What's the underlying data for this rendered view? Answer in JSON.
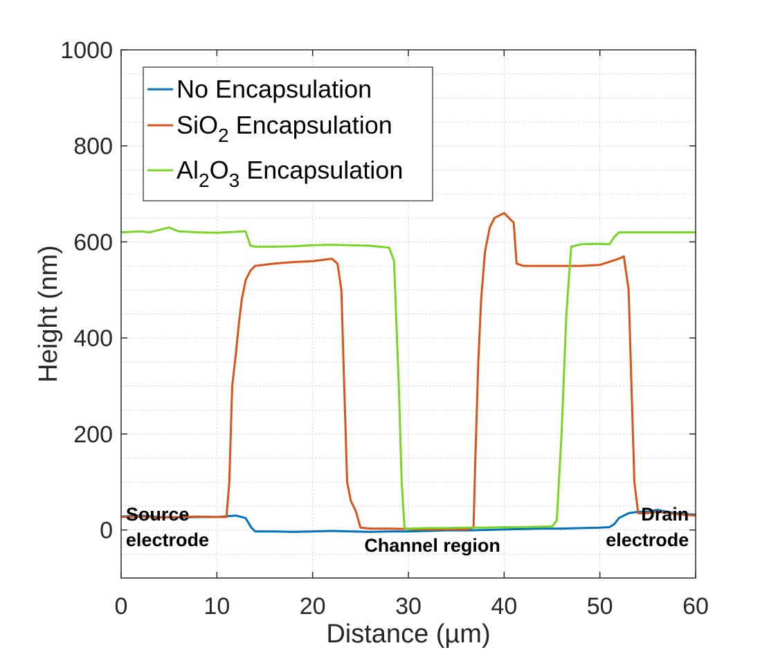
{
  "chart_data": {
    "type": "line",
    "title": "",
    "xlabel": "Distance (µm)",
    "ylabel": "Height (nm)",
    "xlim": [
      0,
      60
    ],
    "ylim": [
      -100,
      1000
    ],
    "xticks": [
      0,
      10,
      20,
      30,
      40,
      50,
      60
    ],
    "yticks": [
      0,
      200,
      400,
      600,
      800,
      1000
    ],
    "grid": "dotted",
    "legend_position": "top-left",
    "series": [
      {
        "name": "No Encapsulation",
        "legend": [
          "No Encapsulation"
        ],
        "color": "#0072BD",
        "x": [
          0,
          2,
          4,
          6,
          8,
          10,
          12,
          13,
          13.6,
          14,
          16,
          18,
          20,
          22,
          24,
          26,
          28,
          30,
          32,
          34,
          36,
          38,
          40,
          42,
          44,
          46,
          48,
          50,
          51,
          51.5,
          52,
          53,
          54,
          55,
          56,
          57,
          58,
          59,
          60
        ],
        "y": [
          28,
          30,
          27,
          26,
          27,
          27,
          30,
          25,
          5,
          -3,
          -3,
          -4,
          -3,
          -2,
          -3,
          -4,
          -3,
          -3,
          -2,
          -1,
          -1,
          0,
          1,
          2,
          3,
          3,
          4,
          5,
          6,
          12,
          25,
          35,
          38,
          38,
          42,
          38,
          35,
          33,
          32
        ]
      },
      {
        "name": "SiO2 Encapsulation",
        "legend": [
          "SiO",
          "2",
          " Encapsulation"
        ],
        "color": "#D95319",
        "x": [
          0,
          2,
          4,
          6,
          8,
          10,
          11,
          11.3,
          11.6,
          12,
          12.3,
          12.6,
          13,
          13.5,
          14,
          16,
          18,
          20,
          22,
          22.6,
          23,
          23.3,
          23.6,
          24,
          24.5,
          25,
          26,
          28,
          30,
          32,
          34,
          36,
          36.8,
          37,
          37.3,
          37.6,
          38,
          38.5,
          39,
          39.5,
          40,
          40.5,
          41,
          41.3,
          42,
          44,
          46,
          48,
          50,
          52,
          52.5,
          53,
          53.3,
          53.6,
          54,
          55,
          56,
          57,
          58,
          60
        ],
        "y": [
          27,
          28,
          26,
          27,
          28,
          27,
          27,
          100,
          300,
          370,
          430,
          480,
          520,
          540,
          550,
          555,
          558,
          560,
          565,
          555,
          500,
          300,
          100,
          60,
          40,
          5,
          3,
          3,
          2,
          1,
          1,
          1,
          5,
          150,
          350,
          480,
          580,
          630,
          650,
          655,
          660,
          650,
          640,
          555,
          550,
          550,
          550,
          550,
          552,
          565,
          570,
          500,
          300,
          100,
          35,
          35,
          38,
          36,
          33,
          30
        ]
      },
      {
        "name": "Al2O3 Encapsulation",
        "legend": [
          "Al",
          "2",
          "O",
          "3",
          " Encapsulation"
        ],
        "color": "#77D623",
        "x": [
          0,
          2,
          3,
          4,
          5,
          6,
          8,
          10,
          12,
          13,
          13.5,
          14,
          16,
          18,
          20,
          22,
          24,
          26,
          28,
          28.5,
          29,
          29.3,
          29.6,
          30,
          32,
          34,
          36,
          38,
          40,
          42,
          44,
          45,
          45.5,
          46,
          46.5,
          47,
          48,
          50,
          51,
          51.5,
          52,
          54,
          56,
          58,
          60
        ],
        "y": [
          620,
          622,
          620,
          625,
          630,
          622,
          620,
          619,
          621,
          622,
          592,
          590,
          590,
          591,
          593,
          594,
          593,
          592,
          588,
          560,
          300,
          100,
          3,
          3,
          4,
          4,
          5,
          5,
          6,
          6,
          7,
          7,
          20,
          200,
          450,
          590,
          595,
          596,
          595,
          610,
          620,
          620,
          620,
          620,
          620
        ]
      }
    ],
    "annotations": [
      {
        "lines": [
          "Source",
          "electrode"
        ],
        "x": 0.5,
        "y": 20,
        "align": "left"
      },
      {
        "lines": [
          "Channel region"
        ],
        "x": 32.5,
        "y": -45,
        "align": "middle"
      },
      {
        "lines": [
          "Drain",
          "electrode"
        ],
        "x": 59.3,
        "y": 20,
        "align": "right"
      }
    ]
  }
}
